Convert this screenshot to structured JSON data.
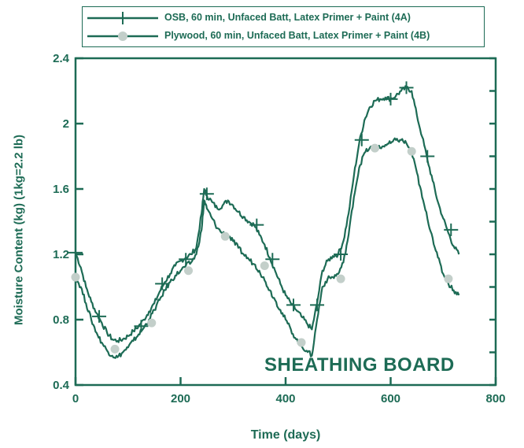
{
  "chart_data": {
    "type": "line",
    "xlabel": "Time (days)",
    "ylabel": "Moisture Content (kg) (1kg=2.2 lb)",
    "xlim": [
      0,
      800
    ],
    "ylim": [
      0.4,
      2.4
    ],
    "xticks": [
      "0",
      "200",
      "400",
      "600",
      "800"
    ],
    "yticks": [
      "0.4",
      "0.8",
      "1.2",
      "1.6",
      "2",
      "2.4"
    ],
    "grid": false,
    "legend_position": "top",
    "annotation": "SHEATHING BOARD",
    "series": [
      {
        "name": "OSB, 60 min, Unfaced Batt,  Latex Primer + Paint  (4A)",
        "color": "#1d6b55",
        "marker": "plus",
        "x": [
          0,
          10,
          20,
          30,
          40,
          50,
          60,
          70,
          80,
          90,
          100,
          110,
          120,
          130,
          140,
          150,
          160,
          170,
          180,
          190,
          200,
          210,
          220,
          230,
          240,
          245,
          250,
          260,
          270,
          280,
          290,
          300,
          310,
          320,
          330,
          340,
          350,
          360,
          370,
          380,
          390,
          400,
          410,
          420,
          430,
          440,
          450,
          460,
          470,
          480,
          490,
          500,
          510,
          520,
          530,
          540,
          550,
          560,
          570,
          580,
          590,
          600,
          610,
          620,
          630,
          640,
          650,
          660,
          670,
          680,
          690,
          700,
          710,
          720,
          730
        ],
        "y": [
          1.21,
          1.12,
          1.0,
          0.91,
          0.84,
          0.78,
          0.72,
          0.68,
          0.67,
          0.68,
          0.7,
          0.73,
          0.76,
          0.8,
          0.85,
          0.9,
          0.97,
          1.03,
          1.08,
          1.13,
          1.16,
          1.18,
          1.2,
          1.24,
          1.45,
          1.6,
          1.56,
          1.52,
          1.48,
          1.5,
          1.53,
          1.5,
          1.46,
          1.43,
          1.4,
          1.38,
          1.32,
          1.26,
          1.18,
          1.1,
          1.02,
          0.95,
          0.9,
          0.86,
          0.82,
          0.78,
          0.74,
          0.9,
          1.1,
          1.16,
          1.19,
          1.2,
          1.28,
          1.45,
          1.68,
          1.88,
          2.02,
          2.1,
          2.14,
          2.15,
          2.16,
          2.15,
          2.17,
          2.2,
          2.22,
          2.2,
          2.05,
          1.92,
          1.78,
          1.65,
          1.52,
          1.42,
          1.33,
          1.25,
          1.2
        ]
      },
      {
        "name": "Plywood, 60 min, Unfaced Batt,  Latex Primer + Paint (4B)",
        "color": "#1d6b55",
        "marker": "circle",
        "x": [
          0,
          10,
          20,
          30,
          40,
          50,
          60,
          70,
          80,
          90,
          100,
          110,
          120,
          130,
          140,
          150,
          160,
          170,
          180,
          190,
          200,
          210,
          220,
          230,
          240,
          245,
          250,
          260,
          270,
          280,
          290,
          300,
          310,
          320,
          330,
          340,
          350,
          360,
          370,
          380,
          390,
          400,
          410,
          420,
          430,
          440,
          450,
          460,
          470,
          480,
          490,
          500,
          510,
          520,
          530,
          540,
          550,
          560,
          570,
          580,
          590,
          600,
          610,
          620,
          630,
          640,
          650,
          660,
          670,
          680,
          690,
          700,
          710,
          720,
          730
        ],
        "y": [
          1.06,
          1.0,
          0.9,
          0.8,
          0.72,
          0.66,
          0.61,
          0.58,
          0.57,
          0.6,
          0.63,
          0.67,
          0.71,
          0.75,
          0.8,
          0.86,
          0.92,
          0.98,
          1.03,
          1.07,
          1.1,
          1.13,
          1.15,
          1.2,
          1.35,
          1.53,
          1.48,
          1.42,
          1.36,
          1.33,
          1.32,
          1.28,
          1.24,
          1.2,
          1.17,
          1.14,
          1.1,
          1.04,
          0.98,
          0.92,
          0.86,
          0.8,
          0.74,
          0.68,
          0.64,
          0.61,
          0.58,
          0.8,
          1.0,
          1.05,
          1.06,
          1.08,
          1.15,
          1.32,
          1.55,
          1.73,
          1.82,
          1.85,
          1.86,
          1.85,
          1.87,
          1.88,
          1.9,
          1.9,
          1.88,
          1.82,
          1.7,
          1.55,
          1.42,
          1.3,
          1.18,
          1.08,
          1.02,
          0.98,
          0.95
        ]
      }
    ],
    "markers": [
      {
        "series": 0,
        "points": [
          [
            0,
            1.21
          ],
          [
            45,
            0.82
          ],
          [
            125,
            0.76
          ],
          [
            165,
            1.02
          ],
          [
            210,
            1.17
          ],
          [
            250,
            1.57
          ],
          [
            345,
            1.38
          ],
          [
            375,
            1.17
          ],
          [
            415,
            0.89
          ],
          [
            460,
            0.89
          ],
          [
            505,
            1.2
          ],
          [
            545,
            1.9
          ],
          [
            600,
            2.15
          ],
          [
            630,
            2.22
          ],
          [
            670,
            1.8
          ],
          [
            715,
            1.35
          ]
        ]
      },
      {
        "series": 1,
        "points": [
          [
            0,
            1.06
          ],
          [
            75,
            0.62
          ],
          [
            145,
            0.78
          ],
          [
            215,
            1.1
          ],
          [
            285,
            1.31
          ],
          [
            360,
            1.13
          ],
          [
            430,
            0.66
          ],
          [
            505,
            1.05
          ],
          [
            570,
            1.85
          ],
          [
            640,
            1.83
          ],
          [
            710,
            1.05
          ]
        ]
      }
    ]
  }
}
